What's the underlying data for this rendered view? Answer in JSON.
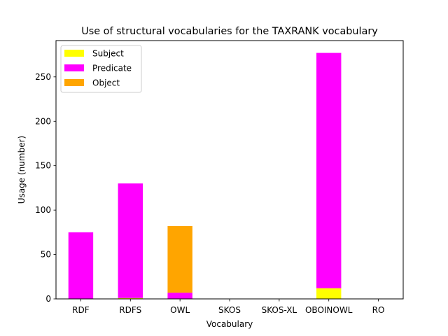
{
  "chart_data": {
    "type": "bar",
    "stacked": true,
    "title": "Use of structural vocabularies for the TAXRANK vocabulary",
    "xlabel": "Vocabulary",
    "ylabel": "Usage (number)",
    "categories": [
      "RDF",
      "RDFS",
      "OWL",
      "SKOS",
      "SKOS-XL",
      "OBOINOWL",
      "RO"
    ],
    "series": [
      {
        "name": "Subject",
        "color": "#ffff00",
        "values": [
          0,
          1,
          0,
          0,
          0,
          12,
          0
        ]
      },
      {
        "name": "Predicate",
        "color": "#ff00ff",
        "values": [
          75,
          129,
          7,
          0,
          0,
          265,
          0
        ]
      },
      {
        "name": "Object",
        "color": "#ffa500",
        "values": [
          0,
          0,
          75,
          0,
          0,
          0,
          0
        ]
      }
    ],
    "ylim": [
      0,
      290.85
    ],
    "yticks": [
      0,
      50,
      100,
      150,
      200,
      250
    ],
    "legend_position": "top-left",
    "grid": false
  }
}
